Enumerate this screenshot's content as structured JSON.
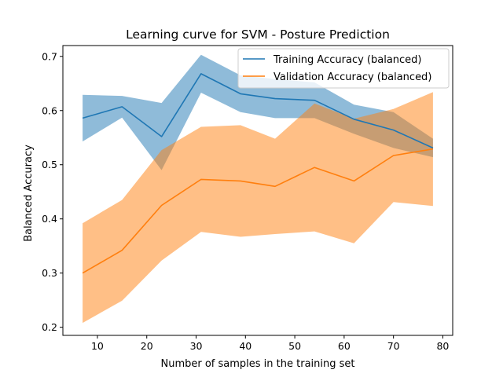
{
  "chart_data": {
    "type": "line",
    "title": "Learning curve for SVM - Posture Prediction",
    "xlabel": "Number of samples in the training set",
    "ylabel": "Balanced Accuracy",
    "xlim": [
      3,
      82
    ],
    "ylim": [
      0.185,
      0.72
    ],
    "xticks": [
      10,
      20,
      30,
      40,
      50,
      60,
      70,
      80
    ],
    "yticks": [
      0.2,
      0.3,
      0.4,
      0.5,
      0.6,
      0.7
    ],
    "grid": false,
    "legend_position": "top-right",
    "x": [
      7,
      15,
      23,
      31,
      39,
      46,
      54,
      62,
      70,
      78
    ],
    "series": [
      {
        "name": "Training Accuracy (balanced)",
        "color": "#1f77b4",
        "values": [
          0.586,
          0.607,
          0.552,
          0.668,
          0.631,
          0.622,
          0.619,
          0.584,
          0.564,
          0.531
        ],
        "upper": [
          0.629,
          0.627,
          0.614,
          0.703,
          0.665,
          0.658,
          0.652,
          0.611,
          0.597,
          0.548
        ],
        "lower": [
          0.543,
          0.587,
          0.49,
          0.633,
          0.597,
          0.586,
          0.586,
          0.557,
          0.531,
          0.514
        ]
      },
      {
        "name": "Validation Accuracy (balanced)",
        "color": "#ff7f0e",
        "values": [
          0.3,
          0.342,
          0.425,
          0.473,
          0.47,
          0.46,
          0.495,
          0.47,
          0.517,
          0.529
        ],
        "upper": [
          0.392,
          0.435,
          0.527,
          0.57,
          0.573,
          0.548,
          0.613,
          0.585,
          0.603,
          0.634
        ],
        "lower": [
          0.208,
          0.249,
          0.323,
          0.376,
          0.367,
          0.372,
          0.377,
          0.355,
          0.431,
          0.424
        ]
      }
    ]
  }
}
